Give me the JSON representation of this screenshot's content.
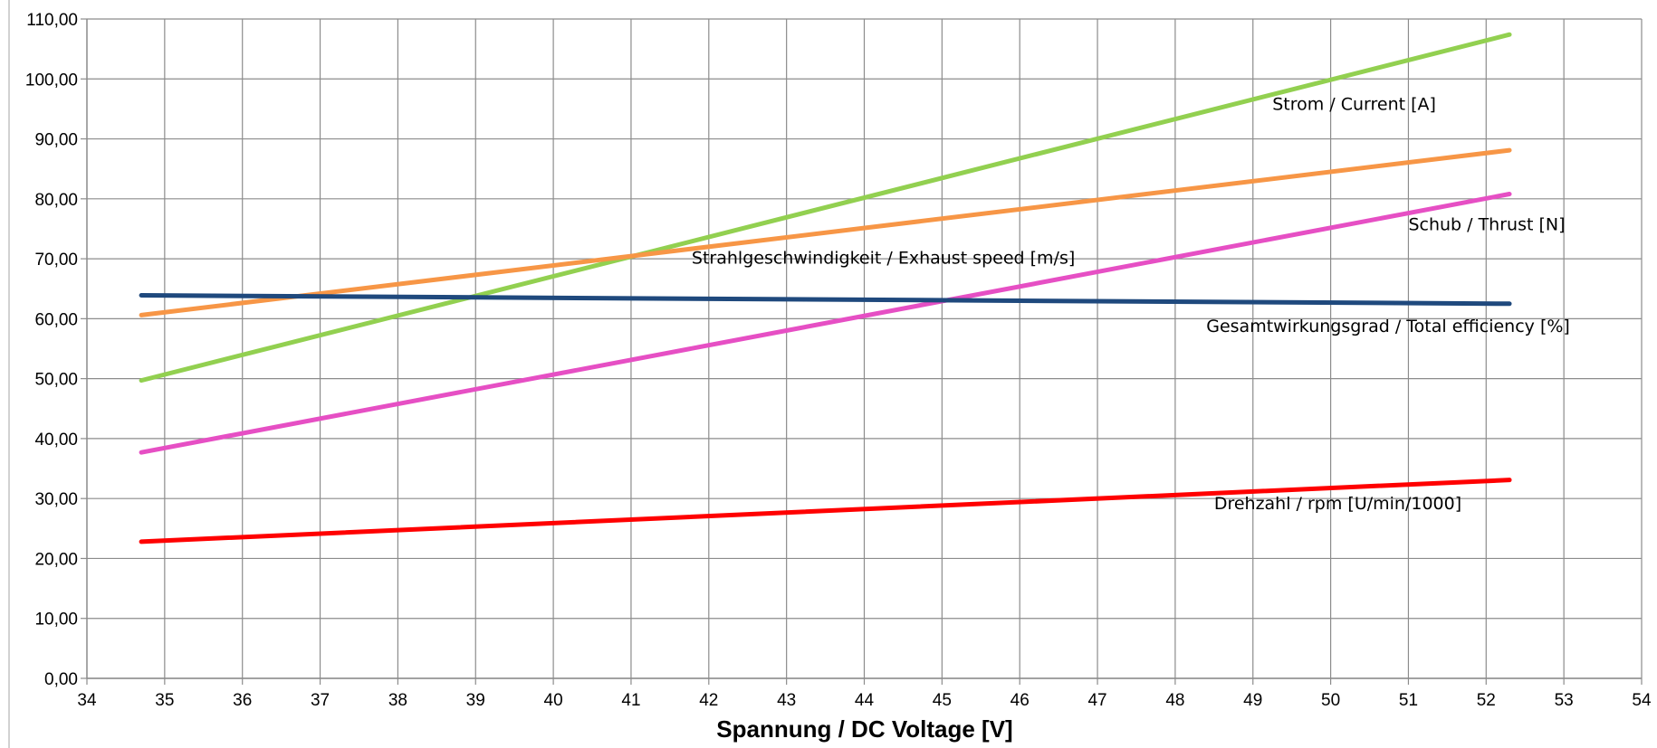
{
  "chart_data": {
    "type": "line",
    "title": "",
    "xlabel": "Spannung / DC Voltage [V]",
    "ylabel": "",
    "xlim": [
      34,
      54
    ],
    "ylim": [
      0,
      110
    ],
    "x_ticks": [
      34,
      35,
      36,
      37,
      38,
      39,
      40,
      41,
      42,
      43,
      44,
      45,
      46,
      47,
      48,
      49,
      50,
      51,
      52,
      53,
      54
    ],
    "x_tick_labels": [
      "34",
      "35",
      "36",
      "37",
      "38",
      "39",
      "40",
      "41",
      "42",
      "43",
      "44",
      "45",
      "46",
      "47",
      "48",
      "49",
      "50",
      "51",
      "52",
      "53",
      "54"
    ],
    "y_ticks": [
      0,
      10,
      20,
      30,
      40,
      50,
      60,
      70,
      80,
      90,
      100,
      110
    ],
    "y_tick_labels": [
      "0,00",
      "10,00",
      "20,00",
      "30,00",
      "40,00",
      "50,00",
      "60,00",
      "70,00",
      "80,00",
      "90,00",
      "100,00",
      "110,00"
    ],
    "grid": true,
    "legend": "none",
    "series": [
      {
        "name": "Strom / Current [A]",
        "color": "#92d050",
        "x": [
          34.7,
          52.3
        ],
        "y": [
          49.7,
          107.4
        ],
        "label_pos": {
          "x": 49.25,
          "y": 94.8
        }
      },
      {
        "name": "Strahlgeschwindigkeit / Exhaust speed [m/s]",
        "color": "#f79646",
        "x": [
          34.7,
          52.3
        ],
        "y": [
          60.6,
          88.1
        ],
        "label_pos": {
          "x": 41.78,
          "y": 69.2
        }
      },
      {
        "name": "Schub / Thrust [N]",
        "color": "#e64fc4",
        "x": [
          34.7,
          52.3
        ],
        "y": [
          37.7,
          80.8
        ],
        "label_pos": {
          "x": 51.0,
          "y": 74.8
        }
      },
      {
        "name": "Gesamtwirkungsgrad / Total efficiency [%]",
        "color": "#1f497d",
        "x": [
          34.7,
          52.3
        ],
        "y": [
          63.9,
          62.5
        ],
        "label_pos": {
          "x": 48.4,
          "y": 57.8
        }
      },
      {
        "name": "Drehzahl / rpm [U/min/1000]",
        "color": "#ff0000",
        "x": [
          34.7,
          52.3
        ],
        "y": [
          22.8,
          33.1
        ],
        "label_pos": {
          "x": 48.5,
          "y": 28.2
        }
      }
    ]
  }
}
